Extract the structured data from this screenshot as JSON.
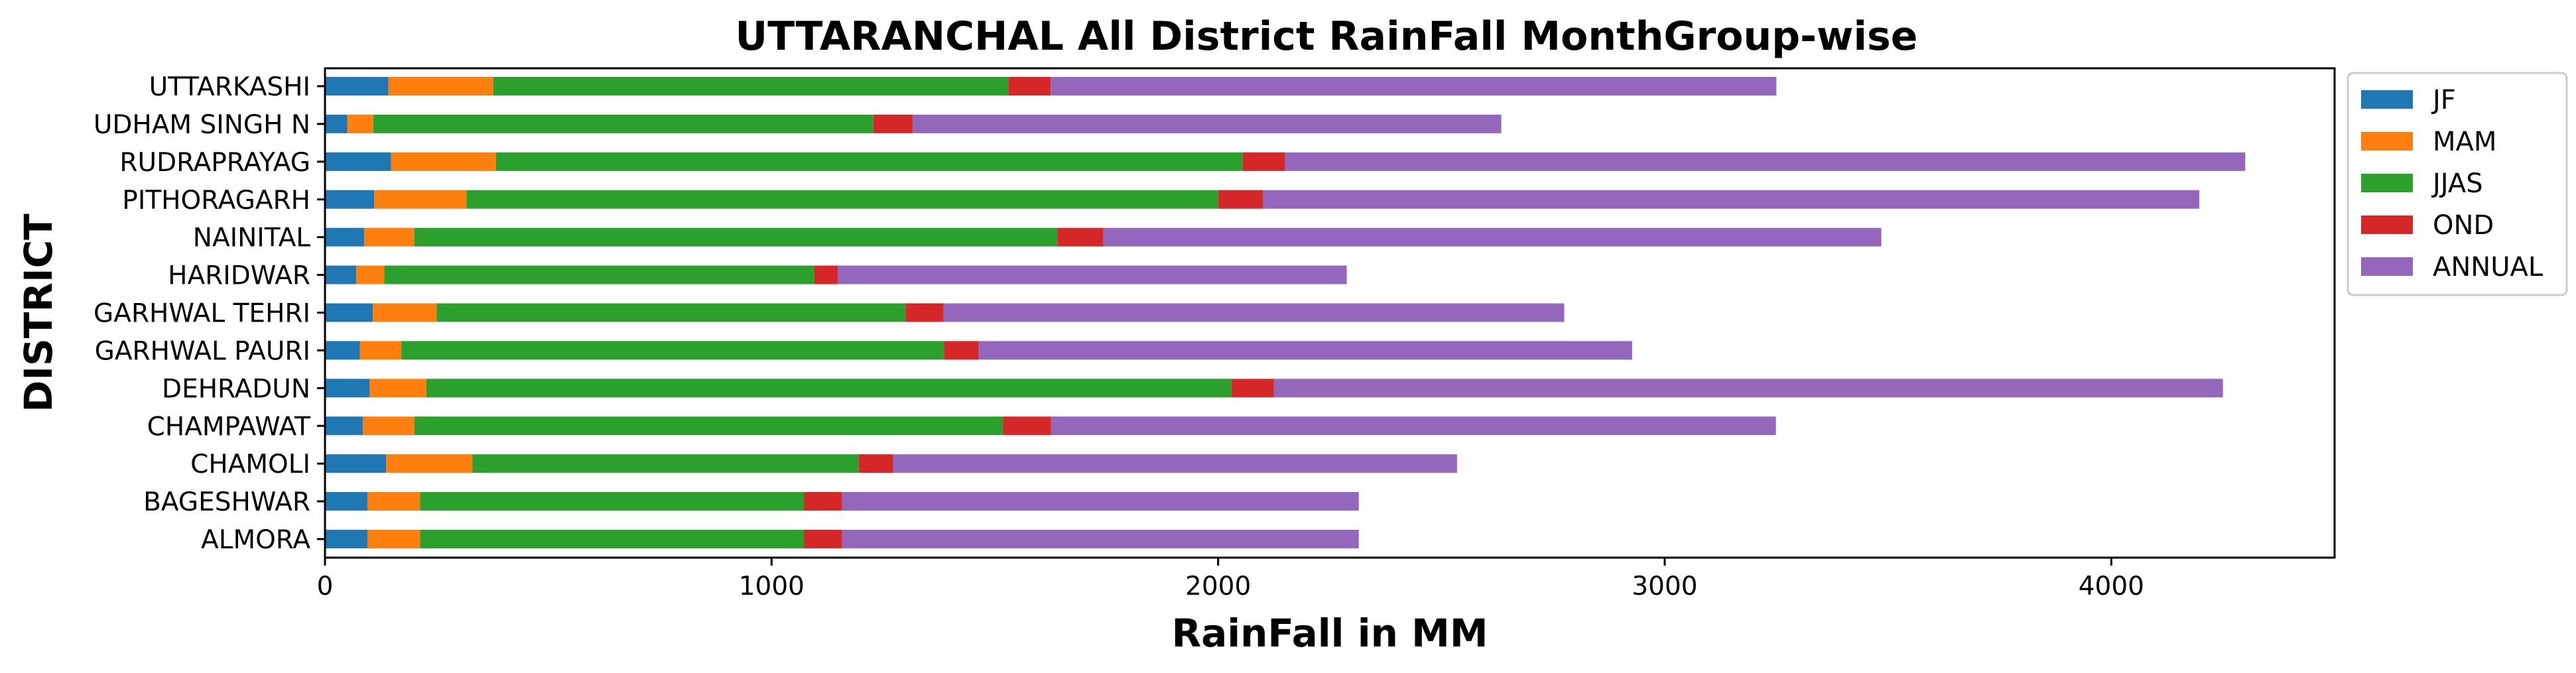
{
  "chart_data": {
    "type": "bar",
    "orientation": "horizontal",
    "stacked": true,
    "title": "UTTARANCHAL All District RainFall MonthGroup-wise",
    "xlabel": "RainFall in MM",
    "ylabel": "DISTRICT",
    "xlim": [
      0,
      4500
    ],
    "xticks": [
      0,
      1000,
      2000,
      3000,
      4000
    ],
    "grid": false,
    "legend_position": "outside-right-top",
    "categories": [
      "ALMORA",
      "BAGESHWAR",
      "CHAMOLI",
      "CHAMPAWAT",
      "DEHRADUN",
      "GARHWAL PAURI",
      "GARHWAL TEHRI",
      "HARIDWAR",
      "NAINITAL",
      "PITHORAGARH",
      "RUDRAPRAYAG",
      "UDHAM SINGH N",
      "UTTARKASHI"
    ],
    "series": [
      {
        "name": "JF",
        "color": "#1f77b4",
        "values": [
          95,
          95,
          137,
          85,
          100,
          78,
          107,
          70,
          88,
          110,
          148,
          50,
          142
        ]
      },
      {
        "name": "MAM",
        "color": "#ff7f0e",
        "values": [
          118,
          118,
          193,
          115,
          127,
          93,
          143,
          63,
          112,
          207,
          235,
          58,
          235
        ]
      },
      {
        "name": "JJAS",
        "color": "#2ca02c",
        "values": [
          860,
          860,
          865,
          1318,
          1803,
          1215,
          1050,
          963,
          1440,
          1683,
          1672,
          1120,
          1153
        ]
      },
      {
        "name": "OND",
        "color": "#d62728",
        "values": [
          85,
          85,
          77,
          108,
          95,
          78,
          85,
          52,
          103,
          100,
          95,
          88,
          95
        ]
      },
      {
        "name": "ANNUAL",
        "color": "#9467bd",
        "values": [
          1157,
          1157,
          1263,
          1623,
          2125,
          1463,
          1390,
          1140,
          1742,
          2097,
          2150,
          1318,
          1625
        ]
      }
    ]
  }
}
